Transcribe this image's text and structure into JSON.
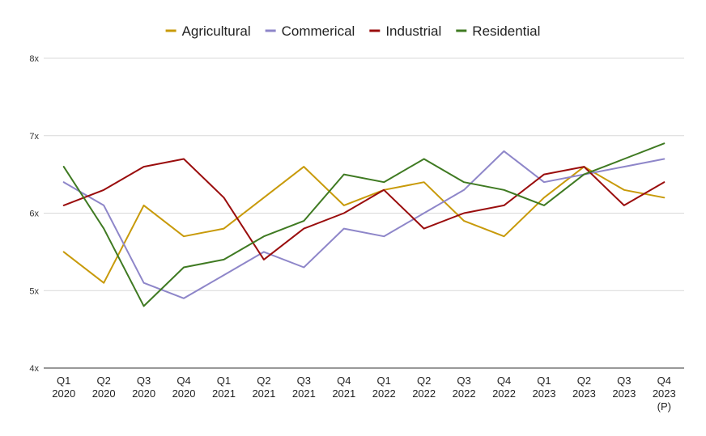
{
  "chart_data": {
    "type": "line",
    "title": "",
    "xlabel": "",
    "ylabel": "",
    "ylim": [
      4,
      8
    ],
    "yticks": [
      "4x",
      "5x",
      "6x",
      "7x",
      "8x"
    ],
    "grid": true,
    "legend_position": "top-center",
    "categories": [
      [
        "Q1",
        "2020"
      ],
      [
        "Q2",
        "2020"
      ],
      [
        "Q3",
        "2020"
      ],
      [
        "Q4",
        "2020"
      ],
      [
        "Q1",
        "2021"
      ],
      [
        "Q2",
        "2021"
      ],
      [
        "Q3",
        "2021"
      ],
      [
        "Q4",
        "2021"
      ],
      [
        "Q1",
        "2022"
      ],
      [
        "Q2",
        "2022"
      ],
      [
        "Q3",
        "2022"
      ],
      [
        "Q4",
        "2022"
      ],
      [
        "Q1",
        "2023"
      ],
      [
        "Q2",
        "2023"
      ],
      [
        "Q3",
        "2023"
      ],
      [
        "Q4",
        "2023",
        "(P)"
      ]
    ],
    "series": [
      {
        "name": "Agricultural",
        "color": "#c89a0a",
        "values": [
          5.5,
          5.1,
          6.1,
          5.7,
          5.8,
          6.2,
          6.6,
          6.1,
          6.3,
          6.4,
          5.9,
          5.7,
          6.2,
          6.6,
          6.3,
          6.2
        ]
      },
      {
        "name": "Commerical",
        "color": "#8e86c9",
        "values": [
          6.4,
          6.1,
          5.1,
          4.9,
          5.2,
          5.5,
          5.3,
          5.8,
          5.7,
          6.0,
          6.3,
          6.8,
          6.4,
          6.5,
          6.6,
          6.7
        ]
      },
      {
        "name": "Industrial",
        "color": "#9a0d0d",
        "values": [
          6.1,
          6.3,
          6.6,
          6.7,
          6.2,
          5.4,
          5.8,
          6.0,
          6.3,
          5.8,
          6.0,
          6.1,
          6.5,
          6.6,
          6.1,
          6.4
        ]
      },
      {
        "name": "Residential",
        "color": "#3f7a22",
        "values": [
          6.6,
          5.8,
          4.8,
          5.3,
          5.4,
          5.7,
          5.9,
          6.5,
          6.4,
          6.7,
          6.4,
          6.3,
          6.1,
          6.5,
          6.7,
          6.9
        ]
      }
    ]
  },
  "colors": {
    "grid": "#d9d9d9",
    "axis": "#333333",
    "background": "#ffffff"
  }
}
